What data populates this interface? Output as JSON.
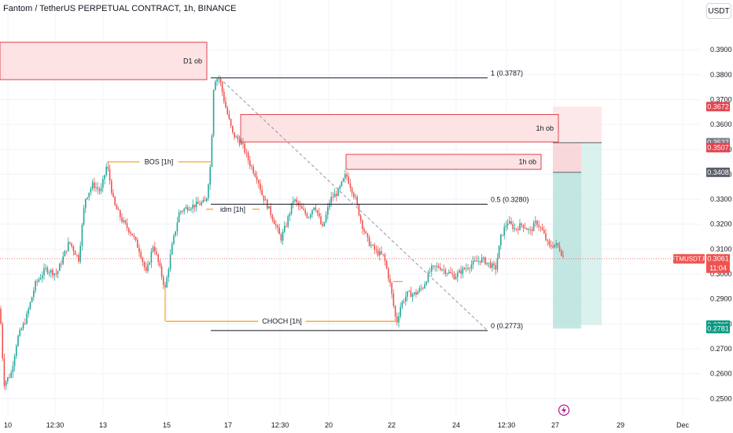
{
  "header": {
    "title": "Fantom / TetherUS PERPETUAL CONTRACT, 1h, BINANCE",
    "currency_button": "USDT"
  },
  "colors": {
    "up": "#26a69a",
    "down": "#ef5350",
    "ob_fill": "#fde3e4",
    "ob_stroke": "#e0434f",
    "structure": "#f5a623",
    "fib": "#131722",
    "tp_zone": "#d4efeb",
    "sl_zone": "#fde6e7"
  },
  "chart_data": {
    "type": "candlestick",
    "symbol": "FTMUSDT.P",
    "ylim": [
      0.246,
      0.403
    ],
    "y_ticks": [
      "0.3900",
      "0.3800",
      "0.3700",
      "0.3600",
      "0.3500",
      "0.3400",
      "0.3300",
      "0.3200",
      "0.3100",
      "0.3000",
      "0.2900",
      "0.2800",
      "0.2700",
      "0.2600",
      "0.2500"
    ],
    "x_tick_labels": [
      "10",
      "12:30",
      "13",
      "15",
      "17",
      "12:30",
      "20",
      "22",
      "24",
      "12:30",
      "27",
      "29",
      "Dec"
    ],
    "last_price": 0.3061,
    "countdown": "11:04",
    "price_path": [
      [
        0,
        0.286
      ],
      [
        5,
        0.256
      ],
      [
        14,
        0.26
      ],
      [
        22,
        0.274
      ],
      [
        33,
        0.282
      ],
      [
        45,
        0.296
      ],
      [
        58,
        0.302
      ],
      [
        72,
        0.3
      ],
      [
        88,
        0.313
      ],
      [
        100,
        0.306
      ],
      [
        108,
        0.33
      ],
      [
        118,
        0.336
      ],
      [
        128,
        0.333
      ],
      [
        136,
        0.344
      ],
      [
        145,
        0.328
      ],
      [
        156,
        0.321
      ],
      [
        168,
        0.316
      ],
      [
        178,
        0.309
      ],
      [
        186,
        0.3
      ],
      [
        195,
        0.312
      ],
      [
        210,
        0.294
      ],
      [
        218,
        0.31
      ],
      [
        228,
        0.325
      ],
      [
        240,
        0.327
      ],
      [
        252,
        0.328
      ],
      [
        262,
        0.329
      ],
      [
        268,
        0.345
      ],
      [
        272,
        0.378
      ],
      [
        279,
        0.3787
      ],
      [
        286,
        0.368
      ],
      [
        296,
        0.356
      ],
      [
        308,
        0.352
      ],
      [
        318,
        0.344
      ],
      [
        328,
        0.338
      ],
      [
        333,
        0.332
      ],
      [
        342,
        0.326
      ],
      [
        350,
        0.32
      ],
      [
        357,
        0.314
      ],
      [
        364,
        0.32
      ],
      [
        373,
        0.33
      ],
      [
        383,
        0.326
      ],
      [
        392,
        0.323
      ],
      [
        400,
        0.328
      ],
      [
        410,
        0.318
      ],
      [
        420,
        0.33
      ],
      [
        430,
        0.333
      ],
      [
        440,
        0.34
      ],
      [
        452,
        0.33
      ],
      [
        460,
        0.32
      ],
      [
        468,
        0.313
      ],
      [
        478,
        0.309
      ],
      [
        488,
        0.307
      ],
      [
        496,
        0.296
      ],
      [
        504,
        0.28
      ],
      [
        510,
        0.288
      ],
      [
        518,
        0.292
      ],
      [
        528,
        0.292
      ],
      [
        538,
        0.295
      ],
      [
        548,
        0.302
      ],
      [
        558,
        0.303
      ],
      [
        568,
        0.301
      ],
      [
        578,
        0.299
      ],
      [
        590,
        0.302
      ],
      [
        600,
        0.304
      ],
      [
        612,
        0.306
      ],
      [
        622,
        0.304
      ],
      [
        630,
        0.302
      ],
      [
        637,
        0.315
      ],
      [
        645,
        0.321
      ],
      [
        655,
        0.318
      ],
      [
        664,
        0.32
      ],
      [
        674,
        0.317
      ],
      [
        682,
        0.321
      ],
      [
        690,
        0.317
      ],
      [
        698,
        0.311
      ],
      [
        706,
        0.312
      ],
      [
        712,
        0.31
      ],
      [
        717,
        0.3061
      ]
    ],
    "order_blocks": [
      {
        "label": "D1 ob",
        "top": 0.393,
        "bottom": 0.378
      },
      {
        "label": "1h ob",
        "top": 0.364,
        "bottom": 0.353
      },
      {
        "label": "1h ob",
        "top": 0.348,
        "bottom": 0.342
      }
    ],
    "structure": [
      {
        "label": "BOS [1h]",
        "price": 0.345
      },
      {
        "label": "idm [1h]",
        "price": 0.326
      },
      {
        "label": "CHOCH [1h]",
        "price": 0.281
      }
    ],
    "fib_levels": [
      {
        "label": "1 (0.3787)",
        "price": 0.3787
      },
      {
        "label": "0.5 (0.3280)",
        "price": 0.328
      },
      {
        "label": "0 (0.2773)",
        "price": 0.2773
      }
    ],
    "position": {
      "entry_from": 0.3527,
      "entry_to": 0.3408,
      "stop": 0.3672,
      "target": 0.2795,
      "target_low": 0.2781
    },
    "price_labels": [
      {
        "value": "0.3672",
        "color": "#e0434f"
      },
      {
        "value": "0.3527",
        "color": "#7b7f8a"
      },
      {
        "value": "0.3507",
        "color": "#e0434f"
      },
      {
        "value": "0.3408",
        "color": "#5d606b"
      },
      {
        "value": "0.2795",
        "color": "#089981"
      },
      {
        "value": "0.2781",
        "color": "#089981"
      }
    ]
  }
}
